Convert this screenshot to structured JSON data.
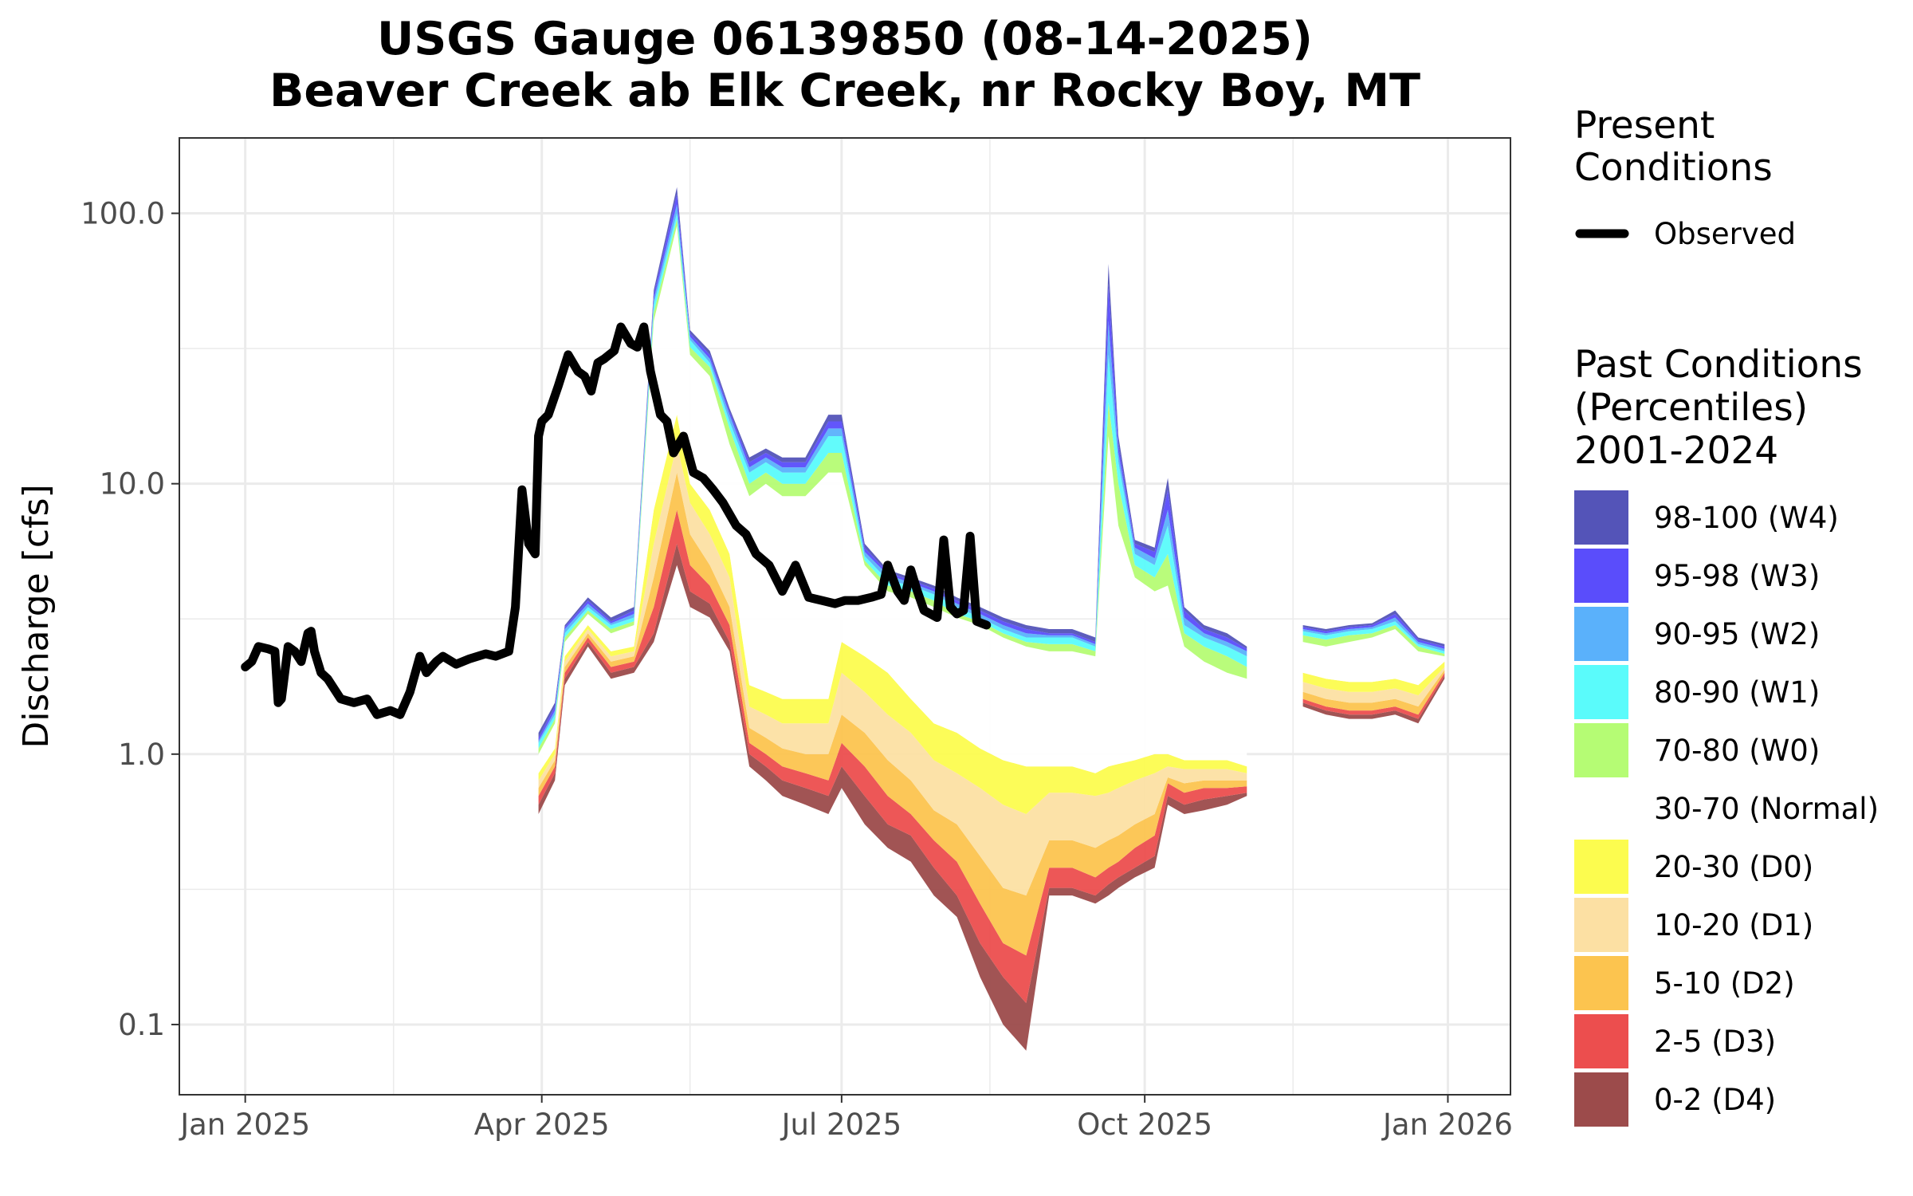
{
  "chart_data": {
    "type": "area",
    "title": "USGS Gauge 06139850 (08-14-2025)",
    "subtitle": "Beaver Creek ab Elk Creek, nr Rocky Boy, MT",
    "xlabel": "",
    "ylabel": "Discharge [cfs]",
    "y_scale": "log",
    "ylim": [
      0.055,
      190
    ],
    "xlim": [
      "2024-12-12",
      "2026-01-20"
    ],
    "y_ticks": [
      {
        "value": 0.1,
        "label": "0.1"
      },
      {
        "value": 1,
        "label": "1.0"
      },
      {
        "value": 10,
        "label": "10.0"
      },
      {
        "value": 100,
        "label": "100.0"
      }
    ],
    "x_ticks": [
      {
        "date": "2025-01-01",
        "label": "Jan 2025"
      },
      {
        "date": "2025-04-01",
        "label": "Apr 2025"
      },
      {
        "date": "2025-07-01",
        "label": "Jul 2025"
      },
      {
        "date": "2025-10-01",
        "label": "Oct 2025"
      },
      {
        "date": "2026-01-01",
        "label": "Jan 2026"
      }
    ],
    "x_minor_ticks": [
      "2025-02-15",
      "2025-05-16",
      "2025-08-15",
      "2025-11-15"
    ],
    "grid": true,
    "legend_position": "right",
    "present_legend": {
      "title_lines": [
        "Present",
        "Conditions"
      ],
      "label": "Observed",
      "color": "#000000"
    },
    "past_legend": {
      "title_lines": [
        "Past Conditions",
        "(Percentiles)",
        "2001-2024"
      ],
      "items": [
        {
          "label": "98-100 (W4)",
          "color": "#5454b8"
        },
        {
          "label": "95-98 (W3)",
          "color": "#5a4dfb"
        },
        {
          "label": "90-95 (W2)",
          "color": "#5ab1fb"
        },
        {
          "label": "80-90 (W1)",
          "color": "#5afbfb"
        },
        {
          "label": "70-80 (W0)",
          "color": "#b5fc74"
        },
        {
          "label": "30-70 (Normal)",
          "color": "#ffffff"
        },
        {
          "label": "20-30 (D0)",
          "color": "#fcfc4f"
        },
        {
          "label": "10-20 (D1)",
          "color": "#fce0a3"
        },
        {
          "label": "5-10 (D2)",
          "color": "#fcc44f"
        },
        {
          "label": "2-5 (D3)",
          "color": "#ec4e4e"
        },
        {
          "label": "0-2 (D4)",
          "color": "#9c4b4b"
        }
      ]
    },
    "percentile_bands": {
      "dates": [
        "2025-03-31",
        "2025-04-05",
        "2025-04-08",
        "2025-04-15",
        "2025-04-22",
        "2025-04-29",
        "2025-05-05",
        "2025-05-12",
        "2025-05-16",
        "2025-05-22",
        "2025-05-28",
        "2025-06-03",
        "2025-06-08",
        "2025-06-13",
        "2025-06-20",
        "2025-06-27",
        "2025-07-01",
        "2025-07-08",
        "2025-07-15",
        "2025-07-22",
        "2025-07-29",
        "2025-08-05",
        "2025-08-12",
        "2025-08-19",
        "2025-08-26",
        "2025-09-02",
        "2025-09-09",
        "2025-09-16",
        "2025-09-20",
        "2025-09-23",
        "2025-09-28",
        "2025-10-04",
        "2025-10-08",
        "2025-10-13",
        "2025-10-19",
        "2025-10-26",
        "2025-11-01",
        "2025-11-06",
        "2025-11-10",
        "2025-11-18",
        "2025-11-25",
        "2025-12-02",
        "2025-12-09",
        "2025-12-16",
        "2025-12-23",
        "2025-12-31"
      ],
      "levels": [
        {
          "name": "p0",
          "values": [
            0.6,
            0.8,
            1.8,
            2.5,
            1.9,
            2.0,
            2.6,
            5.0,
            3.5,
            3.2,
            2.4,
            0.9,
            0.8,
            0.7,
            0.65,
            0.6,
            0.75,
            0.55,
            0.45,
            0.4,
            0.3,
            0.25,
            0.15,
            0.1,
            0.08,
            0.3,
            0.3,
            0.28,
            0.3,
            0.32,
            0.35,
            0.38,
            0.65,
            0.6,
            0.62,
            0.65,
            0.7,
            null,
            null,
            1.5,
            1.4,
            1.35,
            1.35,
            1.4,
            1.3,
            1.9
          ]
        },
        {
          "name": "p2",
          "values": [
            0.65,
            0.85,
            1.9,
            2.6,
            2.0,
            2.1,
            2.8,
            6.0,
            4.0,
            3.6,
            2.6,
            1.0,
            0.9,
            0.8,
            0.75,
            0.7,
            0.9,
            0.7,
            0.55,
            0.5,
            0.38,
            0.3,
            0.2,
            0.15,
            0.12,
            0.32,
            0.32,
            0.3,
            0.33,
            0.35,
            0.38,
            0.42,
            0.7,
            0.65,
            0.68,
            0.7,
            0.72,
            null,
            null,
            1.55,
            1.45,
            1.4,
            1.4,
            1.45,
            1.35,
            1.95
          ]
        },
        {
          "name": "p5",
          "values": [
            0.7,
            0.9,
            2.0,
            2.7,
            2.1,
            2.2,
            3.5,
            8.0,
            5.0,
            4.2,
            3.0,
            1.1,
            1.0,
            0.9,
            0.85,
            0.8,
            1.1,
            0.9,
            0.7,
            0.6,
            0.48,
            0.4,
            0.28,
            0.2,
            0.18,
            0.38,
            0.38,
            0.35,
            0.38,
            0.4,
            0.45,
            0.5,
            0.78,
            0.72,
            0.75,
            0.75,
            0.76,
            null,
            null,
            1.6,
            1.5,
            1.45,
            1.45,
            1.5,
            1.4,
            2.0
          ]
        },
        {
          "name": "p10",
          "values": [
            0.75,
            0.95,
            2.1,
            2.8,
            2.2,
            2.3,
            4.5,
            11,
            6.5,
            5.0,
            3.5,
            1.25,
            1.15,
            1.05,
            1.0,
            1.0,
            1.4,
            1.2,
            0.95,
            0.8,
            0.62,
            0.55,
            0.42,
            0.32,
            0.3,
            0.48,
            0.48,
            0.45,
            0.48,
            0.5,
            0.55,
            0.6,
            0.82,
            0.78,
            0.8,
            0.8,
            0.8,
            null,
            null,
            1.7,
            1.6,
            1.55,
            1.55,
            1.6,
            1.5,
            2.05
          ]
        },
        {
          "name": "p20",
          "values": [
            0.8,
            1.0,
            2.2,
            2.9,
            2.3,
            2.4,
            6.0,
            14,
            8.5,
            6.5,
            4.5,
            1.5,
            1.4,
            1.3,
            1.3,
            1.3,
            2.0,
            1.7,
            1.4,
            1.2,
            0.95,
            0.85,
            0.75,
            0.65,
            0.6,
            0.72,
            0.72,
            0.7,
            0.72,
            0.75,
            0.8,
            0.85,
            0.9,
            0.88,
            0.88,
            0.88,
            0.85,
            null,
            null,
            1.85,
            1.75,
            1.7,
            1.7,
            1.75,
            1.65,
            2.1
          ]
        },
        {
          "name": "p30",
          "values": [
            0.85,
            1.05,
            2.3,
            3.0,
            2.4,
            2.5,
            8.0,
            18,
            10,
            8.0,
            5.5,
            1.8,
            1.7,
            1.6,
            1.6,
            1.6,
            2.6,
            2.3,
            2.0,
            1.6,
            1.3,
            1.2,
            1.05,
            0.95,
            0.9,
            0.9,
            0.9,
            0.85,
            0.9,
            0.92,
            0.95,
            1.0,
            1.0,
            0.95,
            0.95,
            0.95,
            0.9,
            null,
            null,
            2.0,
            1.9,
            1.85,
            1.85,
            1.9,
            1.8,
            2.2
          ]
        },
        {
          "name": "p70",
          "values": [
            1.0,
            1.3,
            2.6,
            3.3,
            2.8,
            3.0,
            40,
            90,
            30,
            25,
            14,
            9,
            10,
            9,
            9,
            11,
            11,
            5,
            4,
            3.8,
            3.5,
            3.2,
            3.0,
            2.7,
            2.5,
            2.4,
            2.4,
            2.3,
            15,
            7,
            4.5,
            4.0,
            4.2,
            2.5,
            2.2,
            2.0,
            1.9,
            null,
            null,
            2.6,
            2.5,
            2.6,
            2.7,
            2.9,
            2.4,
            2.3
          ]
        },
        {
          "name": "p80",
          "values": [
            1.05,
            1.35,
            2.7,
            3.4,
            2.9,
            3.1,
            43,
            95,
            32,
            27,
            16,
            10,
            11,
            10,
            10,
            13,
            13,
            5.2,
            4.2,
            4.0,
            3.7,
            3.3,
            3.1,
            2.8,
            2.6,
            2.55,
            2.55,
            2.4,
            20,
            10,
            5.0,
            4.5,
            5.5,
            2.8,
            2.5,
            2.3,
            2.1,
            null,
            null,
            2.75,
            2.65,
            2.75,
            2.8,
            3.0,
            2.5,
            2.35
          ]
        },
        {
          "name": "p90",
          "values": [
            1.1,
            1.4,
            2.8,
            3.5,
            3.0,
            3.2,
            46,
            100,
            34,
            28,
            17,
            11,
            12,
            11,
            11,
            15,
            15,
            5.4,
            4.4,
            4.2,
            3.9,
            3.5,
            3.2,
            2.9,
            2.7,
            2.7,
            2.7,
            2.5,
            30,
            12,
            5.5,
            5.0,
            7.0,
            3.0,
            2.7,
            2.5,
            2.3,
            null,
            null,
            2.85,
            2.75,
            2.85,
            2.9,
            3.1,
            2.55,
            2.4
          ]
        },
        {
          "name": "p95",
          "values": [
            1.12,
            1.45,
            2.9,
            3.6,
            3.05,
            3.3,
            48,
            108,
            35,
            29,
            18,
            11.5,
            12.5,
            11.5,
            11.5,
            16,
            16,
            5.6,
            4.6,
            4.3,
            4.0,
            3.6,
            3.3,
            3.0,
            2.8,
            2.75,
            2.75,
            2.55,
            40,
            13,
            5.8,
            5.3,
            8.0,
            3.2,
            2.8,
            2.6,
            2.4,
            null,
            null,
            2.9,
            2.8,
            2.9,
            2.95,
            3.2,
            2.6,
            2.45
          ]
        },
        {
          "name": "p98",
          "values": [
            1.15,
            1.5,
            2.95,
            3.7,
            3.1,
            3.4,
            50,
            118,
            36,
            30,
            18.5,
            12,
            13,
            12,
            12,
            17,
            17,
            5.8,
            4.7,
            4.4,
            4.1,
            3.7,
            3.4,
            3.1,
            2.9,
            2.8,
            2.8,
            2.6,
            55,
            14,
            6.0,
            5.6,
            9.5,
            3.4,
            2.9,
            2.7,
            2.45,
            null,
            null,
            2.95,
            2.85,
            2.95,
            3.0,
            3.3,
            2.65,
            2.5
          ]
        },
        {
          "name": "p100",
          "values": [
            1.2,
            1.55,
            3.0,
            3.8,
            3.2,
            3.5,
            52,
            125,
            37,
            31,
            19,
            12.5,
            13.5,
            12.5,
            12.5,
            18,
            18,
            6.0,
            4.8,
            4.5,
            4.2,
            3.8,
            3.5,
            3.2,
            3.0,
            2.9,
            2.9,
            2.7,
            65,
            15,
            6.2,
            5.8,
            10.5,
            3.5,
            3.0,
            2.8,
            2.5,
            null,
            null,
            3.0,
            2.9,
            3.0,
            3.05,
            3.4,
            2.7,
            2.55
          ]
        }
      ]
    },
    "series": [
      {
        "name": "Observed",
        "color": "#000000",
        "dates": [
          "2025-01-01",
          "2025-01-03",
          "2025-01-05",
          "2025-01-08",
          "2025-01-10",
          "2025-01-11",
          "2025-01-12",
          "2025-01-14",
          "2025-01-16",
          "2025-01-18",
          "2025-01-20",
          "2025-01-21",
          "2025-01-22",
          "2025-01-24",
          "2025-01-26",
          "2025-01-30",
          "2025-02-03",
          "2025-02-07",
          "2025-02-10",
          "2025-02-14",
          "2025-02-17",
          "2025-02-20",
          "2025-02-23",
          "2025-02-25",
          "2025-02-28",
          "2025-03-02",
          "2025-03-06",
          "2025-03-10",
          "2025-03-15",
          "2025-03-18",
          "2025-03-22",
          "2025-03-24",
          "2025-03-26",
          "2025-03-28",
          "2025-03-30",
          "2025-03-31",
          "2025-04-01",
          "2025-04-03",
          "2025-04-06",
          "2025-04-09",
          "2025-04-12",
          "2025-04-14",
          "2025-04-16",
          "2025-04-18",
          "2025-04-20",
          "2025-04-23",
          "2025-04-25",
          "2025-04-28",
          "2025-04-30",
          "2025-05-02",
          "2025-05-04",
          "2025-05-07",
          "2025-05-09",
          "2025-05-11",
          "2025-05-14",
          "2025-05-17",
          "2025-05-20",
          "2025-05-23",
          "2025-05-26",
          "2025-05-30",
          "2025-06-02",
          "2025-06-05",
          "2025-06-09",
          "2025-06-13",
          "2025-06-17",
          "2025-06-21",
          "2025-06-25",
          "2025-06-29",
          "2025-07-02",
          "2025-07-06",
          "2025-07-10",
          "2025-07-13",
          "2025-07-15",
          "2025-07-18",
          "2025-07-20",
          "2025-07-22",
          "2025-07-24",
          "2025-07-26",
          "2025-07-28",
          "2025-07-30",
          "2025-08-01",
          "2025-08-03",
          "2025-08-05",
          "2025-08-07",
          "2025-08-09",
          "2025-08-11",
          "2025-08-14"
        ],
        "values": [
          2.1,
          2.2,
          2.5,
          2.45,
          2.4,
          1.55,
          1.6,
          2.5,
          2.4,
          2.2,
          2.8,
          2.85,
          2.4,
          2.0,
          1.9,
          1.6,
          1.55,
          1.6,
          1.4,
          1.45,
          1.4,
          1.7,
          2.3,
          2.0,
          2.2,
          2.3,
          2.15,
          2.25,
          2.35,
          2.3,
          2.4,
          3.5,
          9.5,
          6.0,
          5.5,
          15.0,
          17.0,
          18.0,
          23.0,
          30.0,
          26.0,
          25.0,
          22.0,
          28.0,
          29.0,
          31.0,
          38.0,
          33.0,
          32.0,
          38.0,
          26.0,
          18.0,
          17.0,
          13.0,
          15.0,
          11.0,
          10.5,
          9.5,
          8.5,
          7.0,
          6.5,
          5.5,
          5.0,
          4.0,
          5.0,
          3.8,
          3.7,
          3.6,
          3.7,
          3.7,
          3.8,
          3.9,
          5.0,
          4.0,
          3.7,
          4.8,
          4.0,
          3.4,
          3.3,
          3.2,
          6.2,
          3.5,
          3.3,
          3.4,
          6.4,
          3.1,
          3.0
        ]
      }
    ]
  }
}
